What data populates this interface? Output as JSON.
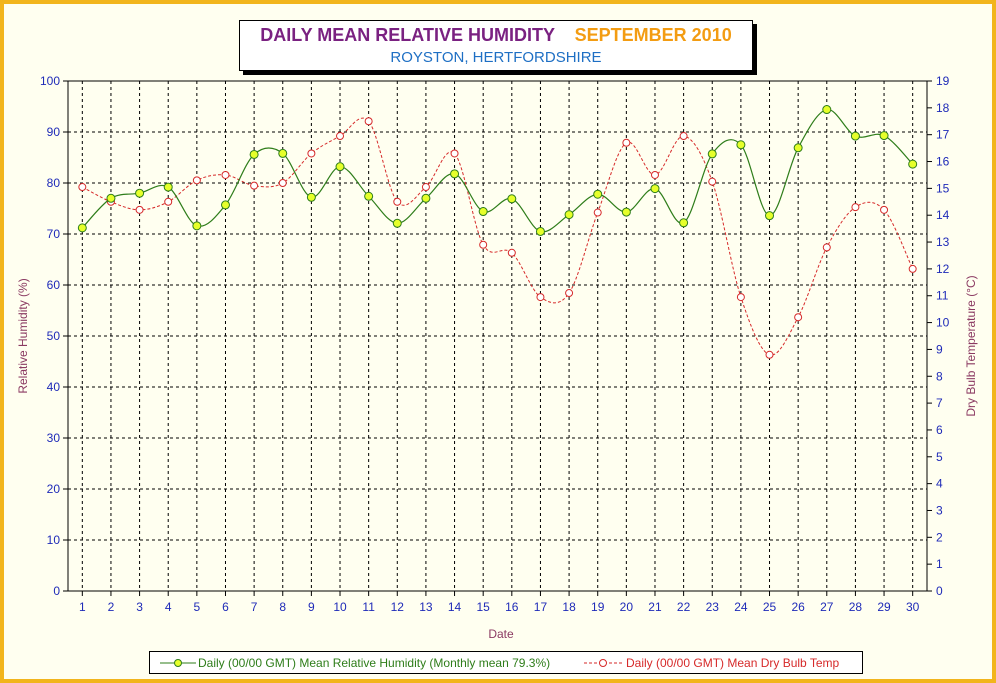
{
  "title": {
    "main": "DAILY MEAN RELATIVE HUMIDITY",
    "month": "SEPTEMBER 2010",
    "location": "ROYSTON, HERTFORDSHIRE"
  },
  "colors": {
    "frame": "#f2b51c",
    "background": "#fffff0",
    "title_main": "#7a2181",
    "title_month": "#f39c12",
    "title_location": "#1e6fc4",
    "axis_label": "#8b3a62",
    "tick_label": "#1f2bb8",
    "humidity_line": "#2e7d1a",
    "humidity_marker": "#e6ff2a",
    "temp_line": "#d62a2a"
  },
  "chart_data": {
    "type": "line",
    "title": "DAILY MEAN RELATIVE HUMIDITY SEPTEMBER 2010",
    "subtitle": "ROYSTON, HERTFORDSHIRE",
    "xlabel": "Date",
    "ylabel": "Relative Humidity (%)",
    "y2label": "Dry Bulb Temperature (°C)",
    "categories": [
      "1",
      "2",
      "3",
      "4",
      "5",
      "6",
      "7",
      "8",
      "9",
      "10",
      "11",
      "12",
      "13",
      "14",
      "15",
      "16",
      "17",
      "18",
      "19",
      "20",
      "21",
      "22",
      "23",
      "24",
      "25",
      "26",
      "27",
      "28",
      "29",
      "30"
    ],
    "ylim": [
      0,
      100
    ],
    "yticks": [
      "0",
      "10",
      "20",
      "30",
      "40",
      "50",
      "60",
      "70",
      "80",
      "90",
      "100"
    ],
    "y2lim": [
      0,
      19
    ],
    "y2ticks": [
      "0",
      "1",
      "2",
      "3",
      "4",
      "5",
      "6",
      "7",
      "8",
      "9",
      "10",
      "11",
      "12",
      "13",
      "14",
      "15",
      "16",
      "17",
      "18",
      "19"
    ],
    "grid": true,
    "legend_position": "bottom",
    "series": [
      {
        "name": "Daily (00/00 GMT) Mean Relative Humidity (Monthly mean 79.3%)",
        "axis": "left",
        "style": "solid",
        "values": [
          71.2,
          77.0,
          78.0,
          79.2,
          71.6,
          75.7,
          85.6,
          85.8,
          77.2,
          83.2,
          77.4,
          72.1,
          77.0,
          81.8,
          74.4,
          76.9,
          70.5,
          73.8,
          77.8,
          74.3,
          78.9,
          72.2,
          85.7,
          87.5,
          73.6,
          86.9,
          94.4,
          89.2,
          89.3,
          83.7
        ]
      },
      {
        "name": "Daily (00/00 GMT) Mean Dry Bulb Temp",
        "axis": "right",
        "style": "dashed",
        "values": [
          15.05,
          14.5,
          14.2,
          14.5,
          15.3,
          15.5,
          15.1,
          15.2,
          16.3,
          16.95,
          17.5,
          14.5,
          15.05,
          16.3,
          12.9,
          12.6,
          10.95,
          11.1,
          14.1,
          16.7,
          15.5,
          16.95,
          15.25,
          10.95,
          8.8,
          10.2,
          12.8,
          14.3,
          14.2,
          12.0
        ]
      }
    ]
  }
}
